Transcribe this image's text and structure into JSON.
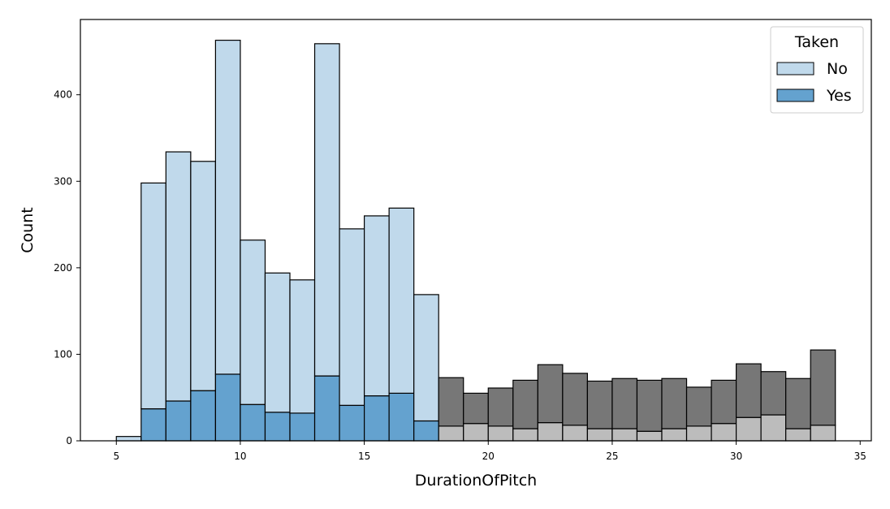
{
  "chart_data": {
    "type": "bar",
    "title": "",
    "xlabel": "DurationOfPitch",
    "ylabel": "Count",
    "xlim": [
      3.55,
      35.45
    ],
    "ylim": [
      0,
      487
    ],
    "xticks": [
      5,
      10,
      15,
      20,
      25,
      30,
      35
    ],
    "yticks": [
      0,
      100,
      200,
      300,
      400
    ],
    "bin_start": 5,
    "bin_width": 1,
    "legend": {
      "title": "Taken",
      "placement": "top-right",
      "entries": [
        "No",
        "Yes"
      ]
    },
    "colors": {
      "no": "#c0d9eb",
      "yes": "#64a2cf",
      "no_faded": "#bcbcbc",
      "yes_faded": "#777777",
      "edge": "#000000"
    },
    "highlight_range": [
      5,
      18
    ],
    "series": [
      {
        "name": "Yes",
        "values": [
          0,
          37,
          46,
          58,
          77,
          42,
          33,
          32,
          75,
          41,
          52,
          55,
          23,
          17,
          20,
          17,
          14,
          21,
          18,
          14,
          14,
          11,
          14,
          17,
          20,
          27,
          30,
          14,
          18
        ]
      },
      {
        "name": "No",
        "values": [
          5,
          261,
          288,
          265,
          386,
          190,
          161,
          154,
          384,
          204,
          208,
          214,
          146,
          56,
          35,
          44,
          56,
          67,
          60,
          55,
          58,
          59,
          58,
          45,
          50,
          62,
          50,
          58,
          87
        ]
      }
    ]
  }
}
